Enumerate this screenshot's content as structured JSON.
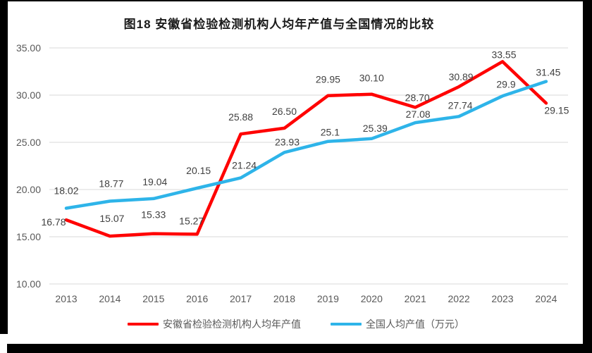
{
  "title": "图18 安徽省检验检测机构人均年产值与全国情况的比较",
  "chart_data": {
    "type": "line",
    "title": "图18 安徽省检验检测机构人均年产值与全国情况的比较",
    "categories": [
      "2013",
      "2014",
      "2015",
      "2016",
      "2017",
      "2018",
      "2019",
      "2020",
      "2021",
      "2022",
      "2023",
      "2024"
    ],
    "series": [
      {
        "name": "安徽省检验检测机构人均年产值",
        "color": "#FF0000",
        "values": [
          16.78,
          15.07,
          15.33,
          15.27,
          25.88,
          26.5,
          29.95,
          30.1,
          28.7,
          30.89,
          33.55,
          29.15
        ],
        "labels": [
          "16.78",
          "15.07",
          "15.33",
          "15.27",
          "25.88",
          "26.50",
          "29.95",
          "30.10",
          "28.70",
          "30.89",
          "33.55",
          "29.15"
        ]
      },
      {
        "name": "全国人均产值（万元）",
        "color": "#2EB4E9",
        "values": [
          18.02,
          18.77,
          19.04,
          20.15,
          21.24,
          23.93,
          25.1,
          25.39,
          27.08,
          27.74,
          29.9,
          31.45
        ],
        "labels": [
          "18.02",
          "18.77",
          "19.04",
          "20.15",
          "21.24",
          "23.93",
          "25.1",
          "25.39",
          "27.08",
          "27.74",
          "29.9",
          "31.45"
        ]
      }
    ],
    "xlabel": "",
    "ylabel": "",
    "ylim": [
      10,
      35
    ],
    "ytick_step": 5,
    "yticks": [
      "35.00",
      "30.00",
      "25.00",
      "20.00",
      "15.00",
      "10.00"
    ],
    "grid": true,
    "legend_position": "bottom",
    "colors": {
      "grid": "#D9D9D9",
      "axis_text": "#595959",
      "label_text": "#404040"
    }
  }
}
